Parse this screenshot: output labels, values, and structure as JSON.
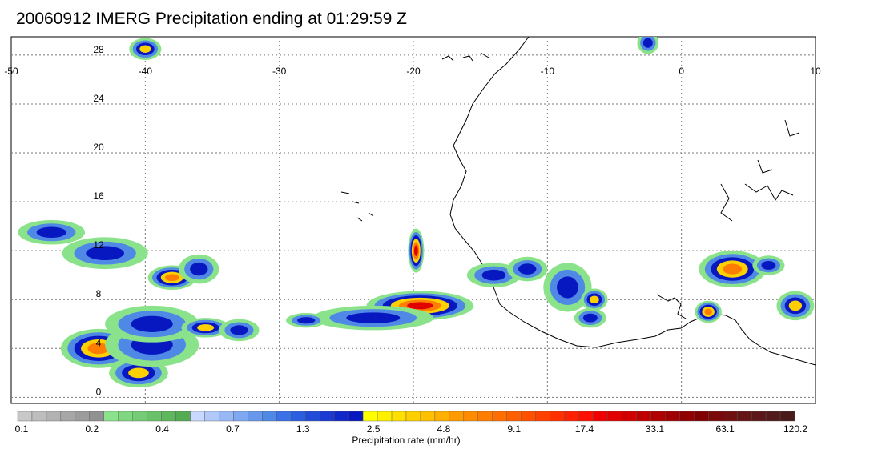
{
  "title": "20060912 IMERG Precipitation ending at 01:29:59 Z",
  "map": {
    "lon_range": [
      -50,
      10
    ],
    "lat_range": [
      -0.5,
      29.5
    ],
    "lon_ticks": [
      "-50",
      "-40",
      "-30",
      "-20",
      "-10",
      "0",
      "10"
    ],
    "lat_ticks": [
      "0",
      "4",
      "8",
      "12",
      "16",
      "20",
      "24",
      "28"
    ],
    "gridlines": "dotted",
    "coastline_color": "#000000"
  },
  "precip_cells": [
    {
      "lon": -40.5,
      "lat": 2.0,
      "rx": 2.2,
      "ry": 1.2,
      "peak": "yellow"
    },
    {
      "lon": -43.5,
      "lat": 4.0,
      "rx": 2.8,
      "ry": 1.6,
      "peak": "orange"
    },
    {
      "lon": -39.5,
      "lat": 4.3,
      "rx": 3.5,
      "ry": 1.8,
      "peak": "blue"
    },
    {
      "lon": -39.5,
      "lat": 6.0,
      "rx": 3.5,
      "ry": 1.5,
      "peak": "blue"
    },
    {
      "lon": -35.5,
      "lat": 5.7,
      "rx": 1.8,
      "ry": 0.8,
      "peak": "yellow"
    },
    {
      "lon": -33,
      "lat": 5.5,
      "rx": 1.5,
      "ry": 0.9,
      "peak": "blue"
    },
    {
      "lon": -47,
      "lat": 13.5,
      "rx": 2.5,
      "ry": 1.0,
      "peak": "blue"
    },
    {
      "lon": -43,
      "lat": 11.8,
      "rx": 3.2,
      "ry": 1.3,
      "peak": "blue"
    },
    {
      "lon": -38,
      "lat": 9.8,
      "rx": 1.8,
      "ry": 1.0,
      "peak": "orange"
    },
    {
      "lon": -36,
      "lat": 10.5,
      "rx": 1.5,
      "ry": 1.2,
      "peak": "blue"
    },
    {
      "lon": -40,
      "lat": 28.5,
      "rx": 1.2,
      "ry": 0.9,
      "peak": "yellow"
    },
    {
      "lon": -19.5,
      "lat": 7.5,
      "rx": 4.0,
      "ry": 1.2,
      "peak": "red"
    },
    {
      "lon": -23,
      "lat": 6.5,
      "rx": 4.5,
      "ry": 1.0,
      "peak": "blue"
    },
    {
      "lon": -19.8,
      "lat": 12.0,
      "rx": 0.6,
      "ry": 1.8,
      "peak": "red"
    },
    {
      "lon": -28,
      "lat": 6.3,
      "rx": 1.5,
      "ry": 0.6,
      "peak": "blue"
    },
    {
      "lon": -14,
      "lat": 10.0,
      "rx": 2.0,
      "ry": 1.0,
      "peak": "blue"
    },
    {
      "lon": -11.5,
      "lat": 10.5,
      "rx": 1.5,
      "ry": 1.0,
      "peak": "blue"
    },
    {
      "lon": -8.5,
      "lat": 9.0,
      "rx": 1.8,
      "ry": 2.0,
      "peak": "blue"
    },
    {
      "lon": -6.5,
      "lat": 8.0,
      "rx": 1.0,
      "ry": 0.9,
      "peak": "yellow"
    },
    {
      "lon": -6.8,
      "lat": 6.5,
      "rx": 1.2,
      "ry": 0.8,
      "peak": "blue"
    },
    {
      "lon": 3.8,
      "lat": 10.5,
      "rx": 2.5,
      "ry": 1.5,
      "peak": "orange"
    },
    {
      "lon": 6.5,
      "lat": 10.8,
      "rx": 1.2,
      "ry": 0.8,
      "peak": "blue"
    },
    {
      "lon": 2.0,
      "lat": 7.0,
      "rx": 1.0,
      "ry": 0.9,
      "peak": "orange"
    },
    {
      "lon": 8.5,
      "lat": 7.5,
      "rx": 1.4,
      "ry": 1.2,
      "peak": "yellow"
    },
    {
      "lon": -2.5,
      "lat": 29.0,
      "rx": 0.8,
      "ry": 0.9,
      "peak": "blue"
    }
  ],
  "colorbar": {
    "title": "Precipitation rate (mm/hr)",
    "labels": [
      "0.1",
      "0.2",
      "0.4",
      "0.7",
      "1.3",
      "2.5",
      "4.8",
      "9.1",
      "17.4",
      "33.1",
      "63.1",
      "120.2"
    ],
    "colors": [
      "#c8c8c8",
      "#bdbdbd",
      "#b2b2b2",
      "#a7a7a7",
      "#9c9c9c",
      "#919191",
      "#8ae38a",
      "#7fd87f",
      "#74cd74",
      "#69c269",
      "#5eb75e",
      "#53ac53",
      "#c8d8ff",
      "#b0c8fa",
      "#98b8f5",
      "#80a8f0",
      "#6898eb",
      "#5088e6",
      "#3a70e8",
      "#2d5ee0",
      "#204cd8",
      "#1a3ad0",
      "#1028c8",
      "#0818c0",
      "#ffff00",
      "#fff000",
      "#ffe000",
      "#ffd000",
      "#ffc000",
      "#ffb000",
      "#ff9b00",
      "#ff8c00",
      "#ff7d00",
      "#ff6e00",
      "#ff5f00",
      "#ff5000",
      "#ff4000",
      "#ff3000",
      "#ff2000",
      "#ff1000",
      "#f00000",
      "#e00000",
      "#d00000",
      "#c00000",
      "#b00000",
      "#a00000",
      "#900000",
      "#800000",
      "#7a0a0a",
      "#701010",
      "#661515",
      "#5c1818",
      "#521a1a",
      "#481a1a"
    ]
  }
}
